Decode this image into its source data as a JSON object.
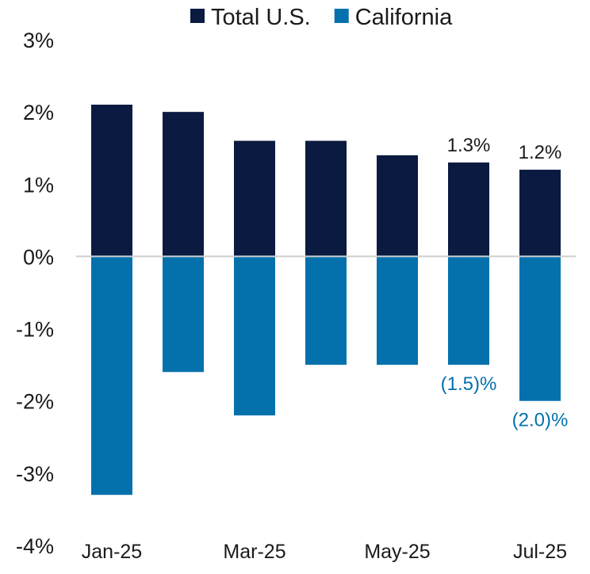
{
  "chart_data": {
    "type": "bar",
    "title": "",
    "xlabel": "",
    "ylabel": "",
    "categories": [
      "Jan-25",
      "Feb-25",
      "Mar-25",
      "Apr-25",
      "May-25",
      "Jun-25",
      "Jul-25"
    ],
    "x_tick_labels": [
      "Jan-25",
      "",
      "Mar-25",
      "",
      "May-25",
      "",
      "Jul-25"
    ],
    "series": [
      {
        "name": "Total U.S.",
        "color": "#0a1a40",
        "values": [
          2.1,
          2.0,
          1.6,
          1.6,
          1.4,
          1.3,
          1.2
        ],
        "data_labels": [
          "",
          "",
          "",
          "",
          "",
          "1.3%",
          "1.2%"
        ]
      },
      {
        "name": "California",
        "color": "#0471ac",
        "values": [
          -3.3,
          -1.6,
          -2.2,
          -1.5,
          -1.5,
          -1.5,
          -2.0
        ],
        "data_labels": [
          "",
          "",
          "",
          "",
          "",
          "(1.5)%",
          "(2.0)%"
        ]
      }
    ],
    "ylim": [
      -4,
      3
    ],
    "y_ticks": [
      3,
      2,
      1,
      0,
      -1,
      -2,
      -3,
      -4
    ],
    "y_tick_labels": [
      "3%",
      "2%",
      "1%",
      "0%",
      "-1%",
      "-2%",
      "-3%",
      "-4%"
    ],
    "grid": false,
    "legend_position": "top"
  }
}
